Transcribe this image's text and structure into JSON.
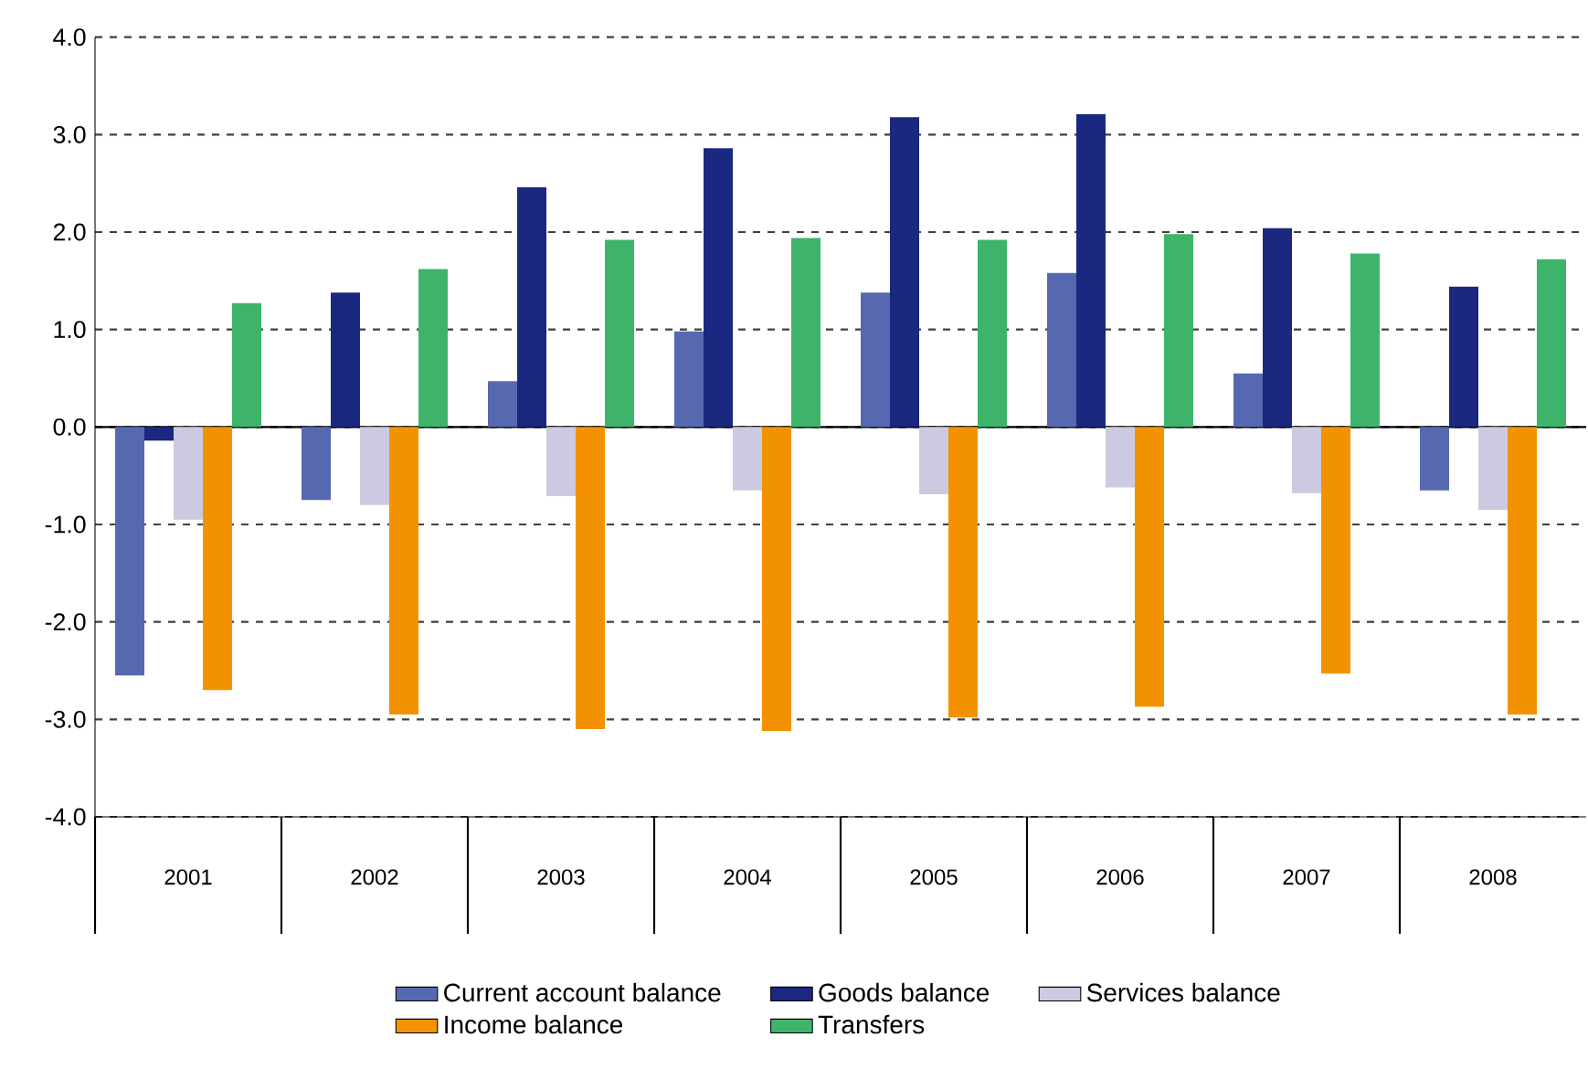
{
  "chart_data": {
    "type": "bar",
    "categories": [
      "2001",
      "2002",
      "2003",
      "2004",
      "2005",
      "2006",
      "2007",
      "2008"
    ],
    "series": [
      {
        "name": "Current account balance",
        "color": "#5668b0",
        "values": [
          -2.55,
          -0.75,
          0.47,
          0.98,
          1.38,
          1.58,
          0.55,
          -0.65
        ]
      },
      {
        "name": "Goods balance",
        "color": "#1a2880",
        "values": [
          -0.14,
          1.38,
          2.46,
          2.86,
          3.18,
          3.21,
          2.04,
          1.44
        ]
      },
      {
        "name": "Services balance",
        "color": "#cccae0",
        "values": [
          -0.95,
          -0.8,
          -0.71,
          -0.65,
          -0.69,
          -0.62,
          -0.68,
          -0.85
        ]
      },
      {
        "name": "Income balance",
        "color": "#f39200",
        "values": [
          -2.7,
          -2.95,
          -3.1,
          -3.12,
          -2.98,
          -2.87,
          -2.53,
          -2.95
        ]
      },
      {
        "name": "Transfers",
        "color": "#3db46a",
        "values": [
          1.27,
          1.62,
          1.92,
          1.94,
          1.92,
          1.98,
          1.78,
          1.72
        ]
      }
    ],
    "ylim": [
      -4,
      4
    ],
    "yticks": [
      {
        "value": -4,
        "label": "-4.0"
      },
      {
        "value": -3,
        "label": "-3.0"
      },
      {
        "value": -2,
        "label": "-2.0"
      },
      {
        "value": -1,
        "label": "-1.0"
      },
      {
        "value": 0,
        "label": "0.0"
      },
      {
        "value": 1,
        "label": "1.0"
      },
      {
        "value": 2,
        "label": "2.0"
      },
      {
        "value": 3,
        "label": "3.0"
      },
      {
        "value": 4,
        "label": "4.0"
      }
    ],
    "grid": "y",
    "legend": "bottom"
  }
}
